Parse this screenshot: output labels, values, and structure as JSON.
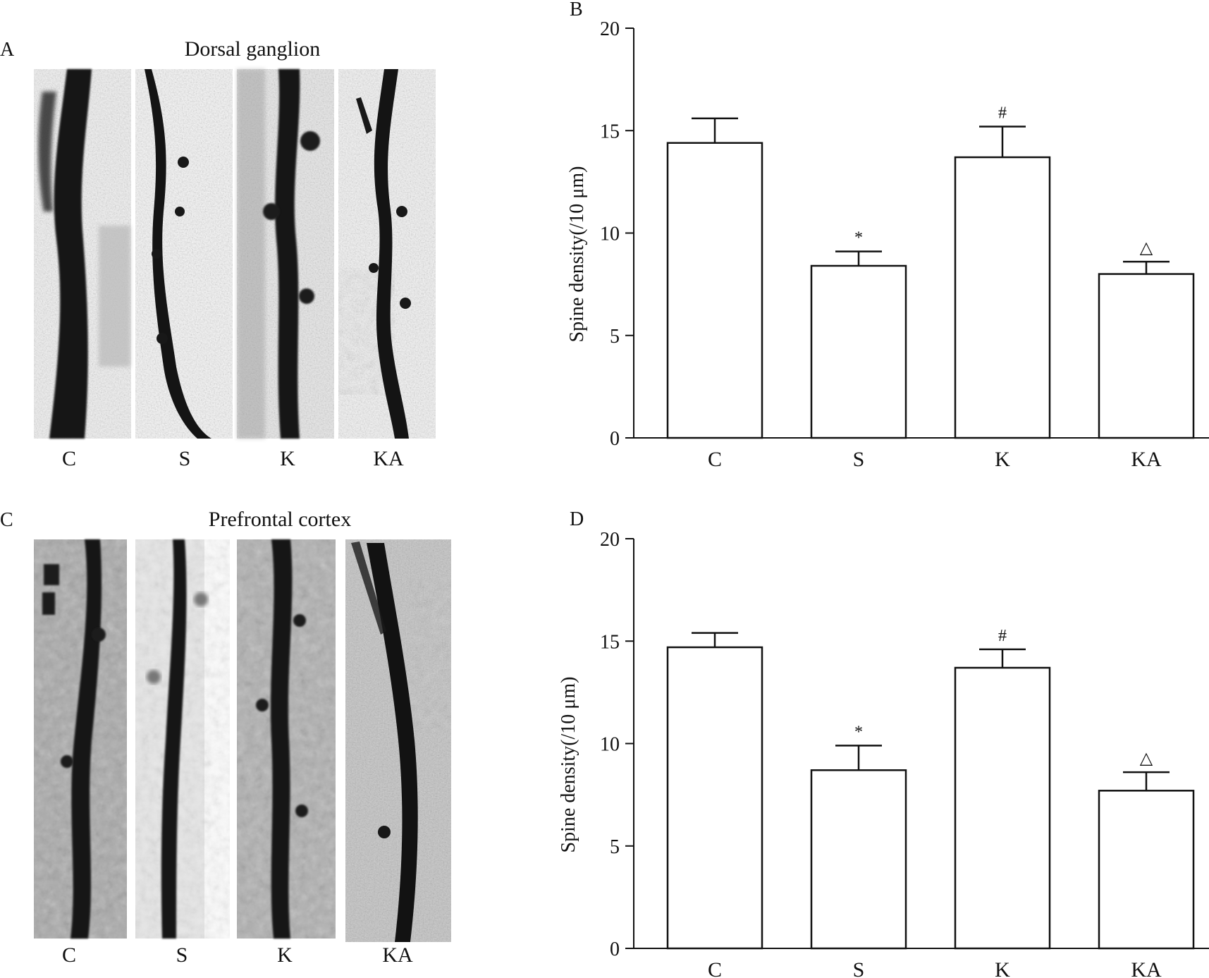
{
  "figure": {
    "panel_a": {
      "letter": "A",
      "title": "Dorsal ganglion",
      "strip_labels": [
        "C",
        "S",
        "K",
        "KA"
      ]
    },
    "panel_c": {
      "letter": "C",
      "title": "Prefrontal cortex",
      "strip_labels": [
        "C",
        "S",
        "K",
        "KA"
      ]
    }
  },
  "chart_data": [
    {
      "panel": "B",
      "type": "bar",
      "categories": [
        "C",
        "S",
        "K",
        "KA"
      ],
      "values": [
        14.4,
        8.4,
        13.7,
        8.0
      ],
      "errors": [
        1.2,
        0.7,
        1.5,
        0.6
      ],
      "significance": [
        "",
        "*",
        "#",
        "△"
      ],
      "xlabel": "",
      "ylabel": "Spine density(/10 μm)",
      "ylim": [
        0,
        20
      ],
      "yticks": [
        0,
        5,
        10,
        15,
        20
      ],
      "bar_color": "#ffffff",
      "edge_color": "#111111"
    },
    {
      "panel": "D",
      "type": "bar",
      "categories": [
        "C",
        "S",
        "K",
        "KA"
      ],
      "values": [
        14.7,
        8.7,
        13.7,
        7.7
      ],
      "errors": [
        0.7,
        1.2,
        0.9,
        0.9
      ],
      "significance": [
        "",
        "*",
        "#",
        "△"
      ],
      "xlabel": "",
      "ylabel": "Spine density(/10 μm)",
      "ylim": [
        0,
        20
      ],
      "yticks": [
        0,
        5,
        10,
        15,
        20
      ],
      "bar_color": "#ffffff",
      "edge_color": "#111111"
    }
  ]
}
